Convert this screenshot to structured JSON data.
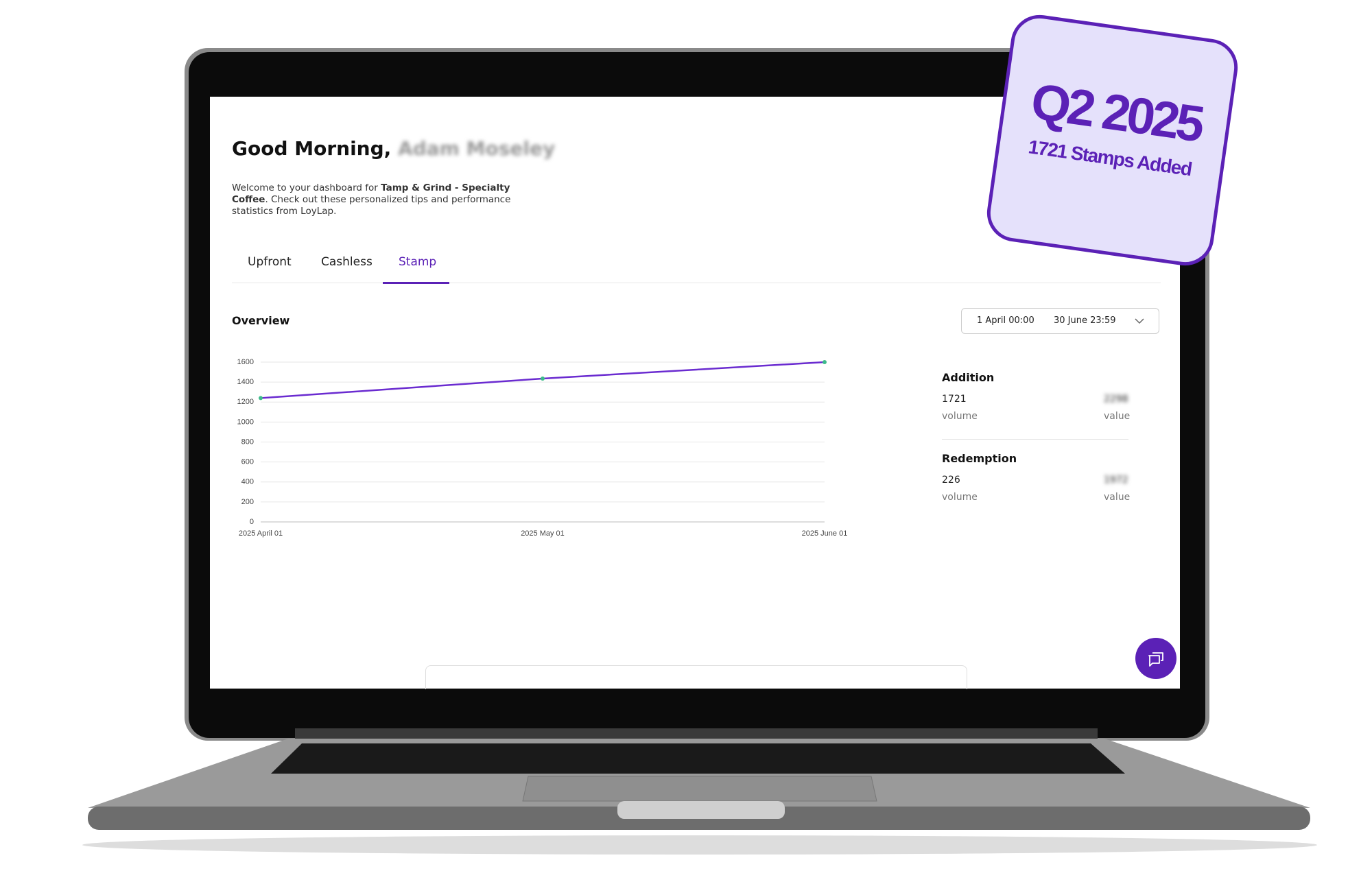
{
  "header": {
    "greeting": "Good Morning,",
    "user_name": "Adam Moseley",
    "welcome_prefix": "Welcome to your dashboard for",
    "business": "Tamp & Grind - Specialty Coffee",
    "welcome_suffix": ". Check out these personalized tips and performance statistics from LoyLap."
  },
  "tabs": [
    "Upfront",
    "Cashless",
    "Stamp"
  ],
  "overview": {
    "title": "Overview",
    "date_from": "1 April 00:00",
    "date_to": "30 June 23:59"
  },
  "chart_data": {
    "type": "line",
    "categories": [
      "2025 April 01",
      "2025 May 01",
      "2025 June 01"
    ],
    "values": [
      1240,
      1435,
      1600
    ],
    "color": "#6a2bd0",
    "marker_color": "#3dbb8a",
    "ylim": [
      0,
      1600
    ],
    "yticks": [
      0,
      200,
      400,
      600,
      800,
      1000,
      1200,
      1400,
      1600
    ],
    "grid": true
  },
  "stats": [
    {
      "title": "Addition",
      "volume": "1721",
      "volume_label": "volume",
      "value": "2298",
      "value_label": "value"
    },
    {
      "title": "Redemption",
      "volume": "226",
      "volume_label": "volume",
      "value": "1972",
      "value_label": "value"
    }
  ],
  "badge": {
    "title": "Q2 2025",
    "subtitle": "1721 Stamps Added"
  }
}
